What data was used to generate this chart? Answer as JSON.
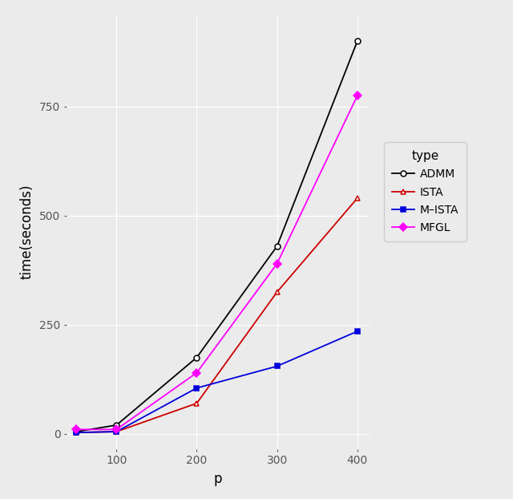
{
  "x": [
    50,
    100,
    200,
    300,
    400
  ],
  "ADMM": [
    5,
    20,
    175,
    430,
    900
  ],
  "ISTA": [
    3,
    5,
    70,
    325,
    540
  ],
  "M_ISTA": [
    3,
    5,
    105,
    155,
    235
  ],
  "MFGL": [
    10,
    10,
    140,
    390,
    775
  ],
  "colors": {
    "ADMM": "#000000",
    "ISTA": "#cc0000",
    "M_ISTA": "#0000dd",
    "MFGL": "#ff00ff"
  },
  "markers": {
    "ADMM": "o",
    "ISTA": "^",
    "M_ISTA": "s",
    "MFGL": "D"
  },
  "marker_fill": {
    "ADMM": "white",
    "ISTA": "white",
    "M_ISTA": "#0000dd",
    "MFGL": "#ff00ff"
  },
  "xlabel": "p",
  "ylabel": "time(seconds)",
  "ylim": [
    -35,
    960
  ],
  "xlim": [
    38,
    415
  ],
  "yticks": [
    0,
    250,
    500,
    750
  ],
  "xticks": [
    100,
    200,
    300,
    400
  ],
  "bg_color": "#ebebeb",
  "grid_color": "#ffffff",
  "legend_title": "type",
  "legend_labels": [
    "ADMM",
    "ISTA",
    "M–ISTA",
    "MFGL"
  ],
  "legend_keys": [
    "ADMM",
    "ISTA",
    "M_ISTA",
    "MFGL"
  ]
}
